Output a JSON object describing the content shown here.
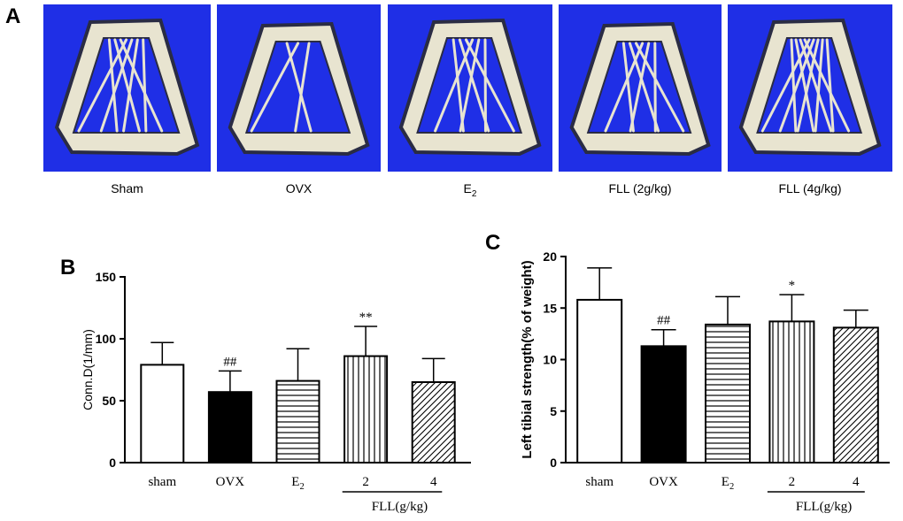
{
  "panels": {
    "a_letter": "A",
    "b_letter": "B",
    "c_letter": "C"
  },
  "images": [
    {
      "caption": "Sham"
    },
    {
      "caption": "OVX"
    },
    {
      "caption": "E",
      "sub": "2"
    },
    {
      "caption": "FLL (2g/kg)"
    },
    {
      "caption": "FLL (4g/kg)"
    }
  ],
  "colors": {
    "ct_background": "#1f2fe6",
    "bone": "#e8e4d0",
    "bone_shadow": "#2a2c44"
  },
  "chart_data": [
    {
      "type": "bar",
      "panel": "B",
      "title": "",
      "ylabel": "Conn.D(1/mm)",
      "xlabel": "FLL(g/kg)",
      "ylim": [
        0,
        150
      ],
      "yticks": [
        0,
        50,
        100,
        150
      ],
      "categories": [
        {
          "label": "sham",
          "sub": ""
        },
        {
          "label": "OVX",
          "sub": ""
        },
        {
          "label": "E",
          "sub": "2"
        },
        {
          "label": "2",
          "sub": ""
        },
        {
          "label": "4",
          "sub": ""
        }
      ],
      "values": [
        79,
        57,
        66,
        86,
        65
      ],
      "errors": [
        18,
        17,
        26,
        24,
        19
      ],
      "patterns": [
        "white",
        "black",
        "hlines",
        "vlines",
        "diagonal"
      ],
      "significance": [
        "",
        "##",
        "",
        "**",
        ""
      ]
    },
    {
      "type": "bar",
      "panel": "C",
      "title": "",
      "ylabel": "Left tibial strength(% of weight)",
      "xlabel": "FLL(g/kg)",
      "ylim": [
        0,
        20
      ],
      "yticks": [
        0,
        5,
        10,
        15,
        20
      ],
      "categories": [
        {
          "label": "sham",
          "sub": ""
        },
        {
          "label": "OVX",
          "sub": ""
        },
        {
          "label": "E",
          "sub": "2"
        },
        {
          "label": "2",
          "sub": ""
        },
        {
          "label": "4",
          "sub": ""
        }
      ],
      "values": [
        15.8,
        11.3,
        13.4,
        13.7,
        13.1
      ],
      "errors": [
        3.1,
        1.6,
        2.7,
        2.6,
        1.7
      ],
      "patterns": [
        "white",
        "black",
        "hlines",
        "vlines",
        "diagonal"
      ],
      "significance": [
        "",
        "##",
        "",
        "*",
        ""
      ]
    }
  ]
}
